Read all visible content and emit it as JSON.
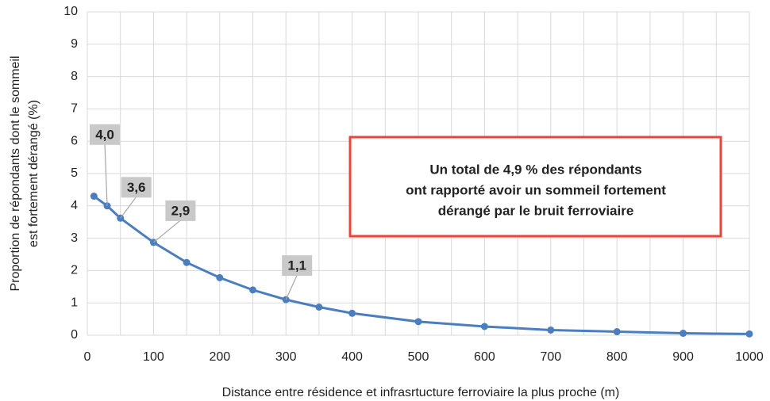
{
  "chart_data": {
    "type": "line",
    "x": [
      10,
      30,
      50,
      100,
      150,
      200,
      250,
      300,
      350,
      400,
      500,
      600,
      700,
      800,
      900,
      1000
    ],
    "series": [
      {
        "color": "#4a7ebf",
        "values": [
          4.3,
          4.0,
          3.62,
          2.87,
          2.25,
          1.78,
          1.4,
          1.1,
          0.87,
          0.68,
          0.42,
          0.27,
          0.16,
          0.11,
          0.06,
          0.04
        ],
        "value_labels": [
          null,
          "4,0",
          "3,6",
          "2,9",
          null,
          null,
          null,
          "1,1",
          null,
          null,
          null,
          null,
          null,
          null,
          null,
          null
        ]
      }
    ],
    "xlim": [
      0,
      1000
    ],
    "xticks": [
      0,
      100,
      200,
      300,
      400,
      500,
      600,
      700,
      800,
      900,
      1000
    ],
    "xminor": [
      50,
      150,
      250,
      350,
      450,
      550,
      650,
      750,
      850,
      950
    ],
    "ylim": [
      0,
      10
    ],
    "yticks": [
      0,
      1,
      2,
      3,
      4,
      5,
      6,
      7,
      8,
      9,
      10
    ],
    "grid": true,
    "xlabel": "Distance entre résidence et infrasrtucture ferroviaire la plus proche (m)",
    "ylabel": [
      "Proportion de répondants dont le sommeil",
      "est fortement dérangé (%)"
    ],
    "annotation": {
      "lines": [
        "Un total de 4,9 % des répondants",
        "ont rapporté avoir un sommeil fortement",
        "dérangé par le bruit ferroviaire"
      ],
      "border_color": "#e8453c"
    }
  }
}
